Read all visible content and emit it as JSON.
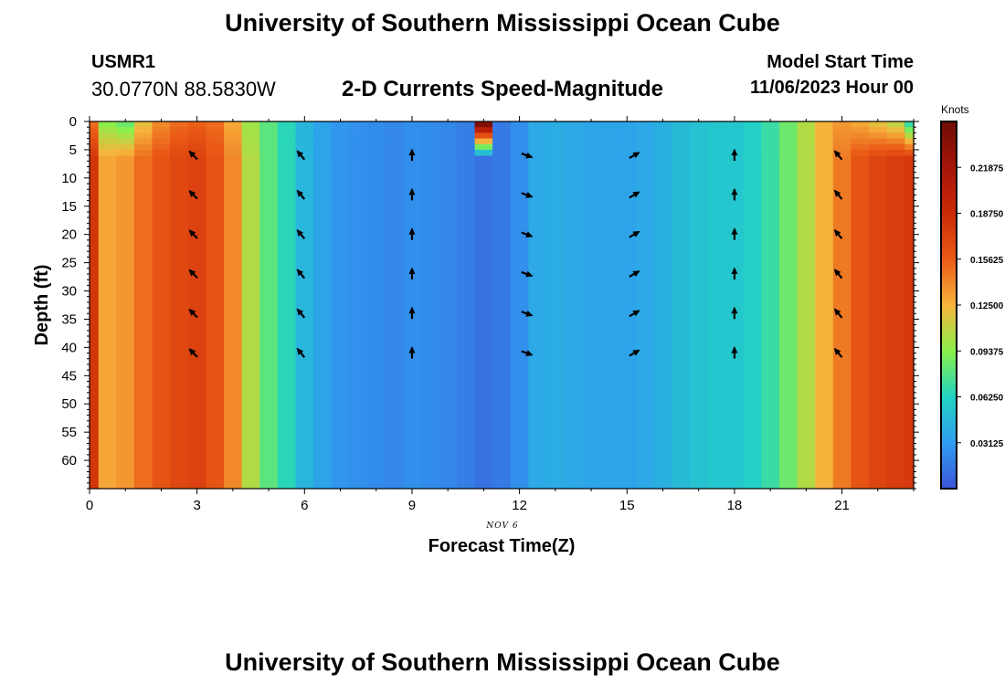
{
  "header": {
    "title": "University of Southern Mississippi Ocean Cube",
    "station_name": "USMR1",
    "coordinates": "30.0770N  88.5830W",
    "subtitle": "2-D Currents Speed-Magnitude",
    "model_start_label": "Model Start Time",
    "model_start_value": "11/06/2023 Hour 00"
  },
  "footer": {
    "title": "University of Southern Mississippi Ocean Cube"
  },
  "chart_data": {
    "type": "heatmap",
    "title": "2-D Currents Speed-Magnitude",
    "xlabel": "Forecast Time(Z)",
    "ylabel": "Depth (ft)",
    "date_label": "NOV 6",
    "colorbar_label": "Knots",
    "xlim": [
      0,
      23
    ],
    "ylim": [
      0,
      65
    ],
    "x_ticks": [
      0,
      3,
      6,
      9,
      12,
      15,
      18,
      21
    ],
    "y_ticks": [
      0,
      5,
      10,
      15,
      20,
      25,
      30,
      35,
      40,
      45,
      50,
      55,
      60
    ],
    "colorbar_ticks": [
      "0.21875",
      "0.18750",
      "0.15625",
      "0.12500",
      "0.09375",
      "0.06250",
      "0.03125"
    ],
    "colorbar_range": [
      0.0,
      0.25
    ],
    "grid": false,
    "hours": [
      0,
      0.5,
      1,
      1.5,
      2,
      2.5,
      3,
      3.5,
      4,
      4.5,
      5,
      5.5,
      6,
      6.5,
      7,
      7.5,
      8,
      8.5,
      9,
      9.5,
      10,
      10.5,
      11,
      11.5,
      12,
      12.5,
      13,
      13.5,
      14,
      14.5,
      15,
      15.5,
      16,
      16.5,
      17,
      17.5,
      18,
      18.5,
      19,
      19.5,
      20,
      20.5,
      21,
      21.5,
      22,
      22.5,
      23
    ],
    "speed_knots": [
      0.18,
      0.13,
      0.135,
      0.15,
      0.16,
      0.168,
      0.172,
      0.16,
      0.14,
      0.105,
      0.08,
      0.065,
      0.045,
      0.035,
      0.028,
      0.026,
      0.024,
      0.022,
      0.025,
      0.024,
      0.022,
      0.018,
      0.012,
      0.016,
      0.025,
      0.038,
      0.04,
      0.038,
      0.036,
      0.035,
      0.035,
      0.038,
      0.042,
      0.048,
      0.052,
      0.055,
      0.055,
      0.06,
      0.07,
      0.085,
      0.105,
      0.125,
      0.145,
      0.16,
      0.17,
      0.175,
      0.178
    ],
    "surface_speed_knots": [
      0.15,
      0.095,
      0.085,
      0.12,
      0.14,
      0.15,
      0.155,
      0.15,
      0.13,
      0.1,
      0.08,
      0.065,
      0.045,
      0.035,
      0.028,
      0.026,
      0.024,
      0.022,
      0.025,
      0.024,
      0.022,
      0.018,
      0.24,
      0.016,
      0.025,
      0.038,
      0.04,
      0.038,
      0.036,
      0.035,
      0.035,
      0.038,
      0.042,
      0.048,
      0.052,
      0.055,
      0.055,
      0.06,
      0.07,
      0.085,
      0.105,
      0.125,
      0.135,
      0.13,
      0.12,
      0.11,
      0.07
    ],
    "vectors": {
      "hours": [
        2.9,
        5.9,
        9.0,
        12.2,
        15.2,
        18.0,
        20.9
      ],
      "depths": [
        6,
        13,
        20,
        27,
        34,
        41
      ],
      "direction_deg": [
        315,
        320,
        0,
        110,
        60,
        0,
        320
      ]
    }
  }
}
